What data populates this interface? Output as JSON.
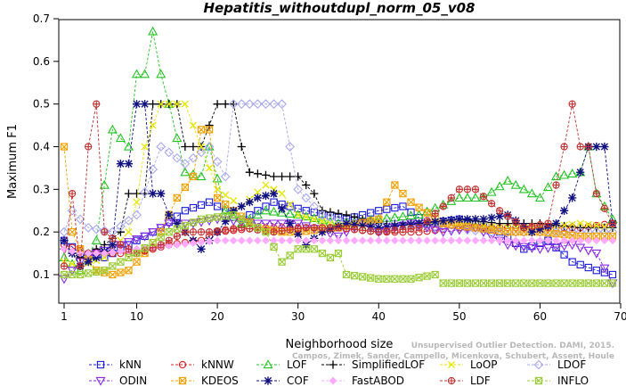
{
  "chart_data": {
    "type": "line",
    "title": "Hepatitis_withoutdupl_norm_05_v08",
    "xlabel": "Neighborhood size",
    "ylabel": "Maximum F1",
    "xlim": [
      0,
      70
    ],
    "ylim": [
      0.05,
      0.7
    ],
    "xticks": [
      1,
      10,
      20,
      30,
      40,
      50,
      60,
      70
    ],
    "yticks": [
      0.1,
      0.2,
      0.3,
      0.4,
      0.5,
      0.6,
      0.7
    ],
    "grid": false,
    "legend_position": "bottom",
    "credit": [
      "Campos, Zimek, Sander, Campello, Micenkova, Schubert, Assent, Houle",
      "Unsupervised Outlier Detection. DAMI, 2015."
    ],
    "series": [
      {
        "name": "kNN",
        "color": "#1a1ad6",
        "marker": "square",
        "anchors": [
          [
            1,
            0.18
          ],
          [
            3,
            0.15
          ],
          [
            6,
            0.14
          ],
          [
            9,
            0.17
          ],
          [
            13,
            0.21
          ],
          [
            16,
            0.25
          ],
          [
            19,
            0.27
          ],
          [
            23,
            0.23
          ],
          [
            27,
            0.27
          ],
          [
            31,
            0.25
          ],
          [
            36,
            0.23
          ],
          [
            40,
            0.25
          ],
          [
            43,
            0.26
          ],
          [
            46,
            0.22
          ],
          [
            50,
            0.23
          ],
          [
            55,
            0.2
          ],
          [
            58,
            0.16
          ],
          [
            61,
            0.18
          ],
          [
            64,
            0.13
          ],
          [
            67,
            0.11
          ],
          [
            69,
            0.1
          ]
        ]
      },
      {
        "name": "kNNW",
        "color": "#d42020",
        "marker": "circle",
        "anchors": [
          [
            1,
            0.17
          ],
          [
            4,
            0.15
          ],
          [
            7,
            0.15
          ],
          [
            10,
            0.15
          ],
          [
            14,
            0.17
          ],
          [
            18,
            0.18
          ],
          [
            20,
            0.2
          ],
          [
            25,
            0.21
          ],
          [
            30,
            0.21
          ],
          [
            35,
            0.21
          ],
          [
            40,
            0.2
          ],
          [
            45,
            0.2
          ],
          [
            50,
            0.21
          ],
          [
            55,
            0.21
          ],
          [
            60,
            0.21
          ],
          [
            65,
            0.21
          ],
          [
            69,
            0.22
          ]
        ]
      },
      {
        "name": "LOF",
        "color": "#22c422",
        "marker": "triangle-up",
        "anchors": [
          [
            1,
            0.14
          ],
          [
            3,
            0.11
          ],
          [
            5,
            0.18
          ],
          [
            7,
            0.44
          ],
          [
            9,
            0.4
          ],
          [
            10,
            0.57
          ],
          [
            11,
            0.57
          ],
          [
            12,
            0.67
          ],
          [
            13,
            0.57
          ],
          [
            14,
            0.5
          ],
          [
            16,
            0.34
          ],
          [
            18,
            0.33
          ],
          [
            19,
            0.4
          ],
          [
            21,
            0.25
          ],
          [
            23,
            0.22
          ],
          [
            26,
            0.25
          ],
          [
            30,
            0.24
          ],
          [
            35,
            0.22
          ],
          [
            40,
            0.23
          ],
          [
            45,
            0.24
          ],
          [
            50,
            0.28
          ],
          [
            53,
            0.28
          ],
          [
            56,
            0.32
          ],
          [
            58,
            0.3
          ],
          [
            60,
            0.28
          ],
          [
            62,
            0.33
          ],
          [
            65,
            0.34
          ],
          [
            66,
            0.4
          ],
          [
            67,
            0.29
          ],
          [
            69,
            0.23
          ]
        ]
      },
      {
        "name": "SimplifiedLOF",
        "color": "#000000",
        "marker": "plus",
        "anchors": [
          [
            1,
            0.16
          ],
          [
            3,
            0.14
          ],
          [
            6,
            0.17
          ],
          [
            8,
            0.2
          ],
          [
            9,
            0.29
          ],
          [
            11,
            0.29
          ],
          [
            12,
            0.5
          ],
          [
            15,
            0.5
          ],
          [
            16,
            0.4
          ],
          [
            18,
            0.4
          ],
          [
            20,
            0.5
          ],
          [
            22,
            0.5
          ],
          [
            23,
            0.4
          ],
          [
            24,
            0.34
          ],
          [
            27,
            0.33
          ],
          [
            30,
            0.33
          ],
          [
            32,
            0.29
          ],
          [
            33,
            0.25
          ],
          [
            36,
            0.24
          ],
          [
            40,
            0.22
          ],
          [
            45,
            0.22
          ],
          [
            50,
            0.23
          ],
          [
            55,
            0.22
          ],
          [
            60,
            0.22
          ],
          [
            65,
            0.21
          ],
          [
            69,
            0.21
          ]
        ]
      },
      {
        "name": "LoOP",
        "color": "#e6e600",
        "marker": "x",
        "anchors": [
          [
            1,
            0.13
          ],
          [
            3,
            0.12
          ],
          [
            6,
            0.14
          ],
          [
            9,
            0.2
          ],
          [
            10,
            0.27
          ],
          [
            11,
            0.4
          ],
          [
            13,
            0.5
          ],
          [
            16,
            0.5
          ],
          [
            18,
            0.4
          ],
          [
            20,
            0.3
          ],
          [
            23,
            0.26
          ],
          [
            26,
            0.31
          ],
          [
            28,
            0.29
          ],
          [
            30,
            0.24
          ],
          [
            34,
            0.22
          ],
          [
            40,
            0.21
          ],
          [
            46,
            0.22
          ],
          [
            50,
            0.22
          ],
          [
            55,
            0.21
          ],
          [
            60,
            0.21
          ],
          [
            65,
            0.22
          ],
          [
            69,
            0.21
          ]
        ]
      },
      {
        "name": "LDOF",
        "color": "#a8a8ee",
        "marker": "diamond",
        "anchors": [
          [
            1,
            0.2
          ],
          [
            2,
            0.25
          ],
          [
            4,
            0.21
          ],
          [
            7,
            0.2
          ],
          [
            10,
            0.24
          ],
          [
            13,
            0.4
          ],
          [
            16,
            0.36
          ],
          [
            19,
            0.4
          ],
          [
            21,
            0.33
          ],
          [
            22,
            0.5
          ],
          [
            25,
            0.5
          ],
          [
            28,
            0.5
          ],
          [
            30,
            0.3
          ],
          [
            33,
            0.24
          ],
          [
            37,
            0.22
          ],
          [
            42,
            0.22
          ],
          [
            48,
            0.21
          ],
          [
            54,
            0.2
          ],
          [
            60,
            0.2
          ],
          [
            65,
            0.2
          ],
          [
            69,
            0.2
          ]
        ]
      },
      {
        "name": "ODIN",
        "color": "#8a2be2",
        "marker": "triangle-down",
        "anchors": [
          [
            1,
            0.09
          ],
          [
            3,
            0.13
          ],
          [
            5,
            0.15
          ],
          [
            8,
            0.17
          ],
          [
            11,
            0.19
          ],
          [
            14,
            0.22
          ],
          [
            17,
            0.22
          ],
          [
            20,
            0.23
          ],
          [
            25,
            0.22
          ],
          [
            30,
            0.22
          ],
          [
            35,
            0.19
          ],
          [
            38,
            0.22
          ],
          [
            40,
            0.2
          ],
          [
            44,
            0.22
          ],
          [
            48,
            0.2
          ],
          [
            52,
            0.21
          ],
          [
            56,
            0.17
          ],
          [
            60,
            0.16
          ],
          [
            64,
            0.17
          ],
          [
            67,
            0.15
          ],
          [
            69,
            0.08
          ]
        ]
      },
      {
        "name": "KDEOS",
        "color": "#f0a000",
        "marker": "square-x",
        "anchors": [
          [
            1,
            0.4
          ],
          [
            2,
            0.2
          ],
          [
            3,
            0.16
          ],
          [
            5,
            0.11
          ],
          [
            7,
            0.1
          ],
          [
            9,
            0.11
          ],
          [
            11,
            0.15
          ],
          [
            13,
            0.2
          ],
          [
            15,
            0.28
          ],
          [
            17,
            0.33
          ],
          [
            18,
            0.44
          ],
          [
            19,
            0.44
          ],
          [
            20,
            0.28
          ],
          [
            22,
            0.25
          ],
          [
            25,
            0.21
          ],
          [
            28,
            0.2
          ],
          [
            30,
            0.2
          ],
          [
            35,
            0.21
          ],
          [
            40,
            0.23
          ],
          [
            42,
            0.31
          ],
          [
            44,
            0.27
          ],
          [
            48,
            0.22
          ],
          [
            52,
            0.21
          ],
          [
            56,
            0.2
          ],
          [
            60,
            0.2
          ],
          [
            65,
            0.19
          ],
          [
            69,
            0.19
          ]
        ]
      },
      {
        "name": "COF",
        "color": "#101080",
        "marker": "asterisk",
        "anchors": [
          [
            1,
            0.18
          ],
          [
            3,
            0.12
          ],
          [
            5,
            0.14
          ],
          [
            7,
            0.17
          ],
          [
            8,
            0.36
          ],
          [
            9,
            0.36
          ],
          [
            10,
            0.5
          ],
          [
            11,
            0.5
          ],
          [
            12,
            0.29
          ],
          [
            13,
            0.29
          ],
          [
            14,
            0.24
          ],
          [
            16,
            0.2
          ],
          [
            18,
            0.16
          ],
          [
            20,
            0.2
          ],
          [
            22,
            0.25
          ],
          [
            25,
            0.28
          ],
          [
            27,
            0.29
          ],
          [
            29,
            0.22
          ],
          [
            31,
            0.17
          ],
          [
            33,
            0.2
          ],
          [
            36,
            0.22
          ],
          [
            40,
            0.21
          ],
          [
            45,
            0.22
          ],
          [
            50,
            0.23
          ],
          [
            53,
            0.23
          ],
          [
            56,
            0.24
          ],
          [
            59,
            0.2
          ],
          [
            62,
            0.22
          ],
          [
            64,
            0.28
          ],
          [
            66,
            0.4
          ],
          [
            68,
            0.4
          ],
          [
            69,
            0.22
          ]
        ]
      },
      {
        "name": "FastABOD",
        "color": "#ffaaff",
        "marker": "diamond-filled",
        "anchors": [
          [
            1,
            0.16
          ],
          [
            3,
            0.15
          ],
          [
            6,
            0.15
          ],
          [
            10,
            0.16
          ],
          [
            15,
            0.17
          ],
          [
            20,
            0.18
          ],
          [
            25,
            0.18
          ],
          [
            30,
            0.18
          ],
          [
            35,
            0.18
          ],
          [
            40,
            0.18
          ],
          [
            45,
            0.18
          ],
          [
            50,
            0.18
          ],
          [
            55,
            0.18
          ],
          [
            60,
            0.18
          ],
          [
            65,
            0.18
          ],
          [
            69,
            0.18
          ]
        ]
      },
      {
        "name": "LDF",
        "color": "#c03030",
        "marker": "circle-plus",
        "anchors": [
          [
            1,
            0.12
          ],
          [
            2,
            0.29
          ],
          [
            3,
            0.12
          ],
          [
            4,
            0.4
          ],
          [
            5,
            0.5
          ],
          [
            6,
            0.2
          ],
          [
            8,
            0.17
          ],
          [
            10,
            0.15
          ],
          [
            13,
            0.17
          ],
          [
            16,
            0.2
          ],
          [
            19,
            0.2
          ],
          [
            23,
            0.21
          ],
          [
            27,
            0.2
          ],
          [
            31,
            0.21
          ],
          [
            35,
            0.21
          ],
          [
            40,
            0.2
          ],
          [
            45,
            0.21
          ],
          [
            48,
            0.26
          ],
          [
            50,
            0.3
          ],
          [
            52,
            0.3
          ],
          [
            55,
            0.25
          ],
          [
            58,
            0.21
          ],
          [
            61,
            0.22
          ],
          [
            63,
            0.4
          ],
          [
            64,
            0.5
          ],
          [
            65,
            0.4
          ],
          [
            66,
            0.4
          ],
          [
            67,
            0.29
          ],
          [
            69,
            0.22
          ]
        ]
      },
      {
        "name": "INFLO",
        "color": "#99cc33",
        "marker": "square-cross",
        "anchors": [
          [
            1,
            0.1
          ],
          [
            3,
            0.1
          ],
          [
            6,
            0.11
          ],
          [
            8,
            0.13
          ],
          [
            10,
            0.15
          ],
          [
            14,
            0.2
          ],
          [
            18,
            0.23
          ],
          [
            22,
            0.24
          ],
          [
            26,
            0.2
          ],
          [
            28,
            0.13
          ],
          [
            30,
            0.16
          ],
          [
            32,
            0.16
          ],
          [
            34,
            0.14
          ],
          [
            35,
            0.15
          ],
          [
            36,
            0.1
          ],
          [
            40,
            0.09
          ],
          [
            44,
            0.09
          ],
          [
            47,
            0.1
          ],
          [
            48,
            0.08
          ],
          [
            55,
            0.08
          ],
          [
            62,
            0.08
          ],
          [
            69,
            0.08
          ]
        ]
      }
    ]
  }
}
